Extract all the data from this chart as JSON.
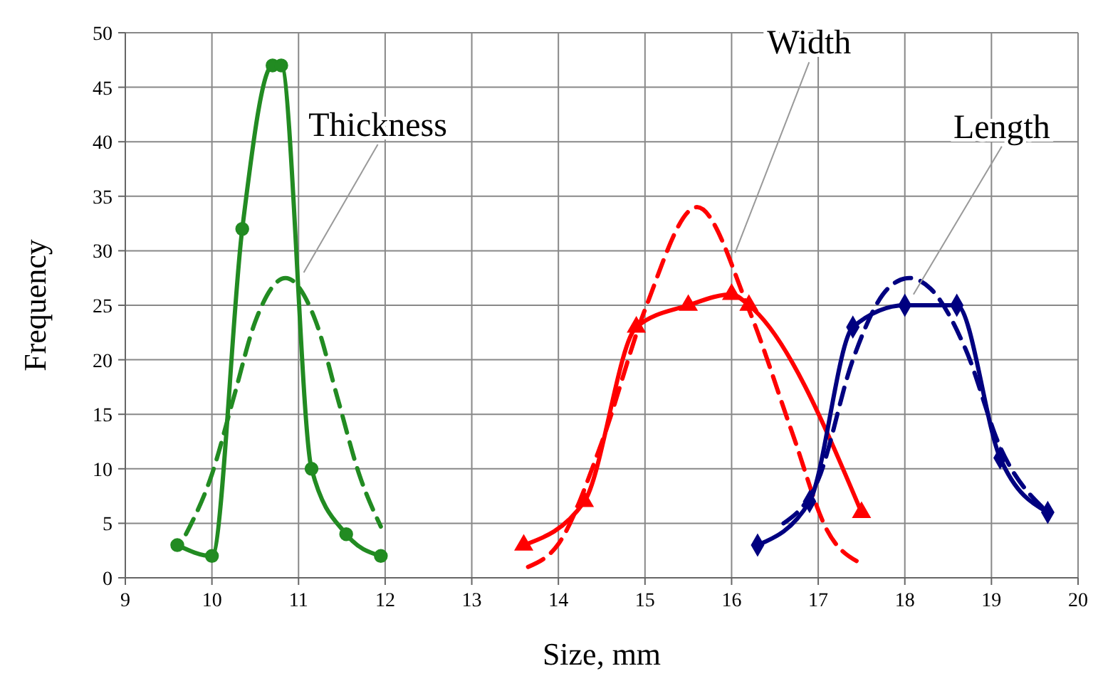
{
  "chart_data": {
    "type": "line",
    "xlabel": "Size, mm",
    "ylabel": "Frequency",
    "xlim": [
      9,
      20
    ],
    "ylim": [
      0,
      50
    ],
    "xticks": [
      9,
      10,
      11,
      12,
      13,
      14,
      15,
      16,
      17,
      18,
      19,
      20
    ],
    "yticks": [
      0,
      5,
      10,
      15,
      20,
      25,
      30,
      35,
      40,
      45,
      50
    ],
    "grid": true,
    "series": [
      {
        "color": "#228b22",
        "marker": "circle",
        "line_style": "solid",
        "x": [
          9.6,
          10,
          10.35,
          10.7,
          10.8,
          11.15,
          11.55,
          11.95
        ],
        "values": [
          3,
          2,
          32,
          47,
          47,
          10,
          4,
          2
        ]
      },
      {
        "color": "#228b22",
        "marker": "none",
        "line_style": "dashed",
        "x": [
          9.7,
          10,
          10.25,
          10.5,
          10.85,
          11.2,
          11.45,
          11.7,
          11.95
        ],
        "values": [
          4,
          9.5,
          16.5,
          23.5,
          27.5,
          23.5,
          16.5,
          9.5,
          4.7
        ]
      },
      {
        "color": "#ff0000",
        "marker": "triangle",
        "line_style": "solid",
        "x": [
          13.6,
          14.3,
          14.9,
          15.5,
          16,
          16.2,
          17.5
        ],
        "values": [
          3,
          7,
          23,
          25,
          26,
          25,
          6
        ]
      },
      {
        "color": "#ff0000",
        "marker": "none",
        "line_style": "dashed",
        "x": [
          13.65,
          14,
          14.5,
          15,
          15.6,
          16.2,
          16.7,
          17.1,
          17.5
        ],
        "values": [
          1,
          3.1,
          12.4,
          24.6,
          34,
          24.6,
          13.3,
          4.4,
          1.3
        ]
      },
      {
        "color": "#000080",
        "marker": "diamond",
        "line_style": "solid",
        "x": [
          16.3,
          16.9,
          17.4,
          18,
          18.6,
          19.1,
          19.65
        ],
        "values": [
          3,
          7,
          23,
          25,
          25,
          11,
          6
        ]
      },
      {
        "color": "#000080",
        "marker": "none",
        "line_style": "dashed",
        "x": [
          16.6,
          17,
          17.4,
          17.8,
          18.05,
          18.3,
          18.7,
          19.1,
          19.65
        ],
        "values": [
          5,
          9,
          20,
          26.5,
          27.5,
          26.5,
          21,
          12,
          6
        ]
      }
    ],
    "annotations": [
      {
        "text": "Thickness",
        "x": 11.06,
        "y": 28
      },
      {
        "text": "Width",
        "x": 16.04,
        "y": 29.8
      },
      {
        "text": "Length",
        "x": 18.1,
        "y": 26
      }
    ]
  }
}
